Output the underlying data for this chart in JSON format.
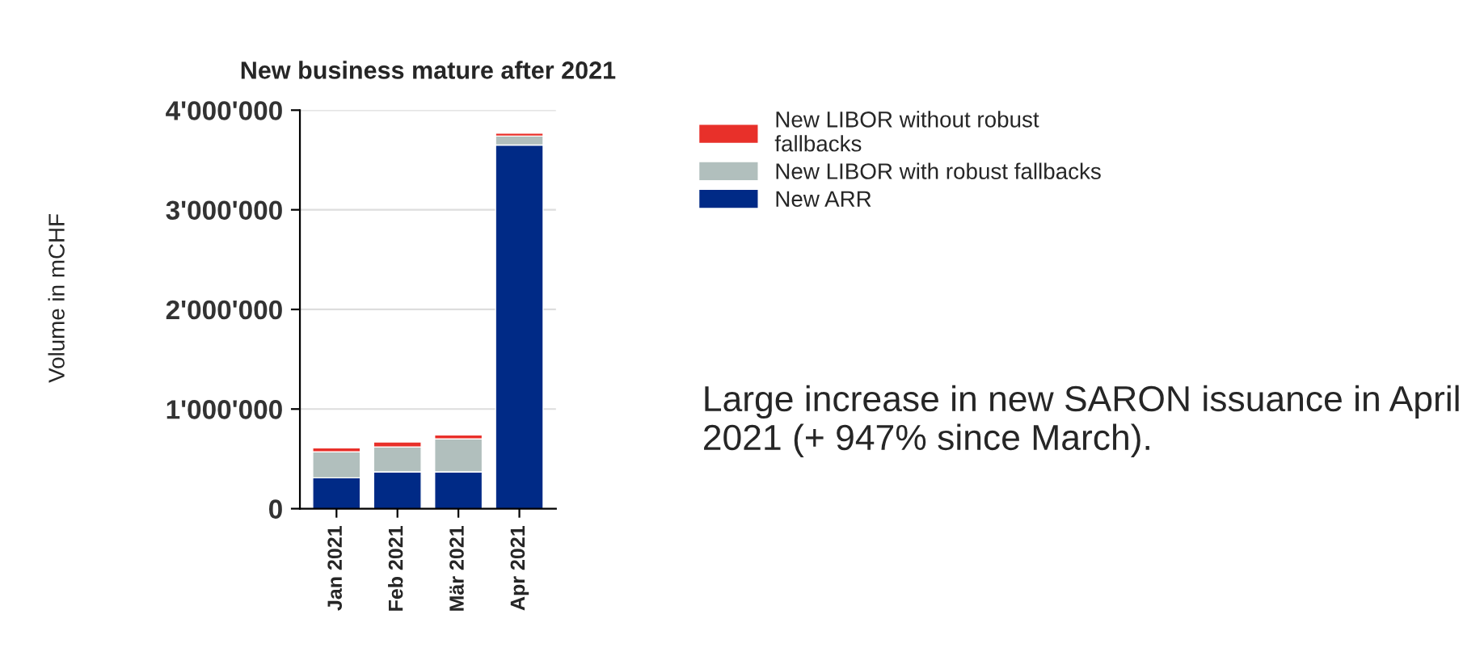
{
  "chart_data": {
    "type": "bar",
    "title": "New business mature after 2021",
    "ylabel": "Volume in mCHF",
    "categories": [
      "Jan 2021",
      "Feb 2021",
      "Mär 2021",
      "Apr 2021"
    ],
    "stacked": true,
    "series": [
      {
        "name": "New ARR",
        "color": "#002a86",
        "values": [
          310000,
          370000,
          370000,
          3650000
        ]
      },
      {
        "name": "New LIBOR with robust fallbacks",
        "color": "#b1bfbd",
        "values": [
          260000,
          250000,
          330000,
          90000
        ]
      },
      {
        "name": "New LIBOR without robust fallbacks",
        "color": "#e8302a",
        "values": [
          40000,
          50000,
          40000,
          30000
        ]
      }
    ],
    "ylim": [
      0,
      4000000
    ],
    "yticks": [
      {
        "value": 0,
        "label": "0"
      },
      {
        "value": 1000000,
        "label": "1'000'000"
      },
      {
        "value": 2000000,
        "label": "2'000'000"
      },
      {
        "value": 3000000,
        "label": "3'000'000"
      },
      {
        "value": 4000000,
        "label": "4'000'000"
      }
    ],
    "grid": "y",
    "legend": "top right",
    "annotations": [
      "Large increase in new SARON issuance in April 2021 (+ 947% since March)."
    ]
  }
}
